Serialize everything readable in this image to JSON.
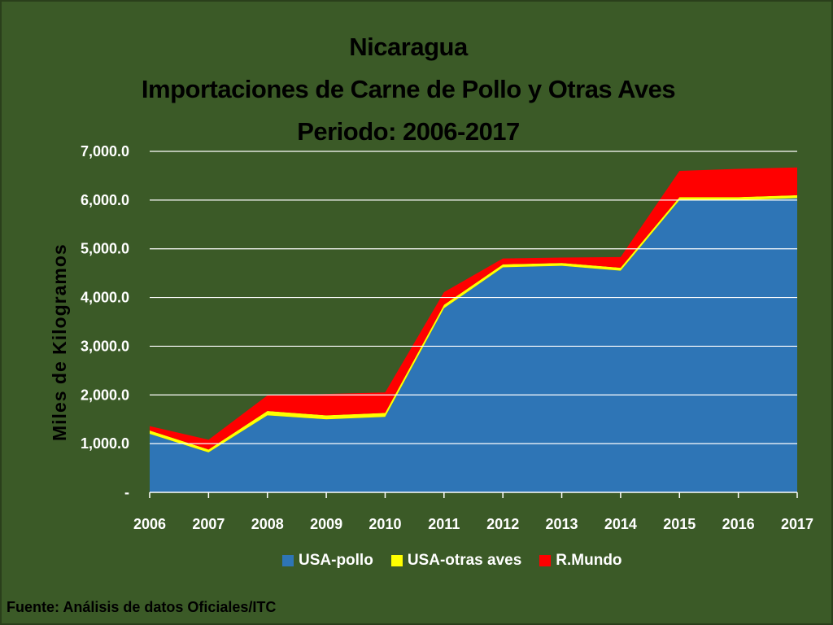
{
  "colors": {
    "background": "#3b5a27",
    "usa_pollo": "#2e75b6",
    "usa_otras_aves": "#ffff00",
    "rmundo": "#ff0000",
    "gridline": "#ffffff"
  },
  "chart_data": {
    "type": "area",
    "stacked": true,
    "title": [
      "Nicaragua",
      "Importaciones de Carne de Pollo y Otras Aves",
      "Periodo: 2006-2017"
    ],
    "ylabel": "Miles de Kilogramos",
    "xlabel": "",
    "ylim": [
      0,
      7000
    ],
    "grid": true,
    "legend_position": "bottom",
    "y_ticks": [
      "-",
      "1,000.0",
      "2,000.0",
      "3,000.0",
      "4,000.0",
      "5,000.0",
      "6,000.0",
      "7,000.0"
    ],
    "categories": [
      "2006",
      "2007",
      "2008",
      "2009",
      "2010",
      "2011",
      "2012",
      "2013",
      "2014",
      "2015",
      "2016",
      "2017"
    ],
    "series": [
      {
        "name": "USA-pollo",
        "values": [
          1200,
          820,
          1580,
          1500,
          1550,
          3780,
          4620,
          4650,
          4550,
          6000,
          6000,
          6040
        ]
      },
      {
        "name": "USA-otras aves",
        "values": [
          70,
          60,
          90,
          80,
          80,
          70,
          60,
          60,
          60,
          60,
          60,
          60
        ]
      },
      {
        "name": "R.Mundo",
        "values": [
          90,
          200,
          320,
          440,
          420,
          260,
          120,
          110,
          220,
          540,
          580,
          570
        ]
      }
    ],
    "source": "Fuente: Análisis de datos Oficiales/ITC"
  }
}
